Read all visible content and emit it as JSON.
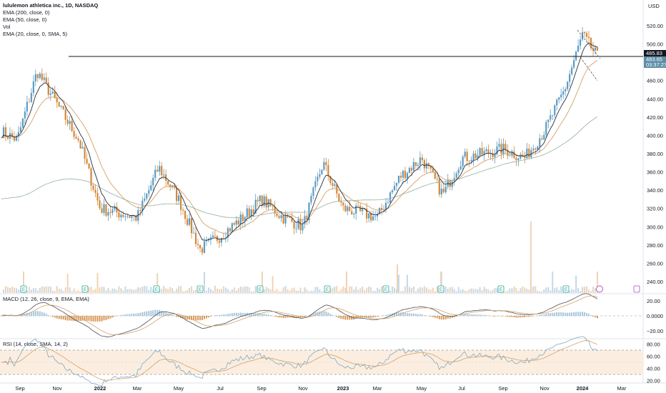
{
  "header": {
    "title": "lululemon athletica inc., 1D, NASDAQ",
    "currency": "USD"
  },
  "indicators": [
    "EMA (200, close, 0)",
    "EMA (50, close, 0)",
    "Vol",
    "EMA (20, close, 0, SMA, 5)"
  ],
  "macd_label": "MACD (12, 26, close, 9, EMA, EMA)",
  "rsi_label": "RSI (14, close, SMA, 14, 2)",
  "colors": {
    "up": "#5b9cc4",
    "down": "#d2883a",
    "ema20": "#2a2e39",
    "ema50": "#d4a16a",
    "ema200": "#9fb7a8",
    "level_line": "#131722",
    "price_tag": "#5d8ea8",
    "rsi_band": "#fbeee0"
  },
  "price_axis": {
    "labels": [
      "520.00",
      "500.00",
      "480.00",
      "460.00",
      "440.00",
      "420.00",
      "400.00",
      "380.00",
      "360.00",
      "340.00",
      "320.00",
      "300.00",
      "280.00",
      "260.00",
      "240.00"
    ]
  },
  "macd_axis": {
    "labels": [
      "20.00",
      "0.0000",
      "−20.00"
    ]
  },
  "rsi_axis": {
    "labels": [
      "80.00",
      "60.00",
      "40.00",
      "20.00"
    ]
  },
  "time_axis": {
    "labels": [
      "Sep",
      "Nov",
      "2022",
      "Mar",
      "May",
      "Jul",
      "Sep",
      "Nov",
      "2023",
      "Mar",
      "May",
      "Jul",
      "Sep",
      "Nov",
      "2024",
      "Mar"
    ]
  },
  "tags": {
    "level": "485.83",
    "last_price": "483.65",
    "countdown": "03:37:27"
  },
  "chart_data": {
    "type": "candlestick",
    "title": "lululemon athletica inc., 1D, NASDAQ",
    "y_range": [
      235,
      525
    ],
    "horizontal_level": 485.83,
    "last_price": 483.65,
    "monthly_closes": {
      "x": [
        "2021-09",
        "2021-10",
        "2021-11",
        "2021-12",
        "2022-01",
        "2022-02",
        "2022-03",
        "2022-04",
        "2022-05",
        "2022-06",
        "2022-07",
        "2022-08",
        "2022-09",
        "2022-10",
        "2022-11",
        "2022-12",
        "2023-01",
        "2023-02",
        "2023-03",
        "2023-04",
        "2023-05",
        "2023-06",
        "2023-07",
        "2023-08",
        "2023-09",
        "2023-10",
        "2023-11",
        "2023-12",
        "2024-01"
      ],
      "values": [
        405,
        395,
        470,
        395,
        320,
        310,
        365,
        330,
        275,
        290,
        310,
        330,
        310,
        300,
        370,
        320,
        315,
        310,
        355,
        375,
        335,
        375,
        380,
        385,
        375,
        405,
        450,
        510,
        484
      ]
    },
    "macd_range": [
      -25,
      25
    ],
    "rsi_levels": [
      30,
      70
    ]
  }
}
